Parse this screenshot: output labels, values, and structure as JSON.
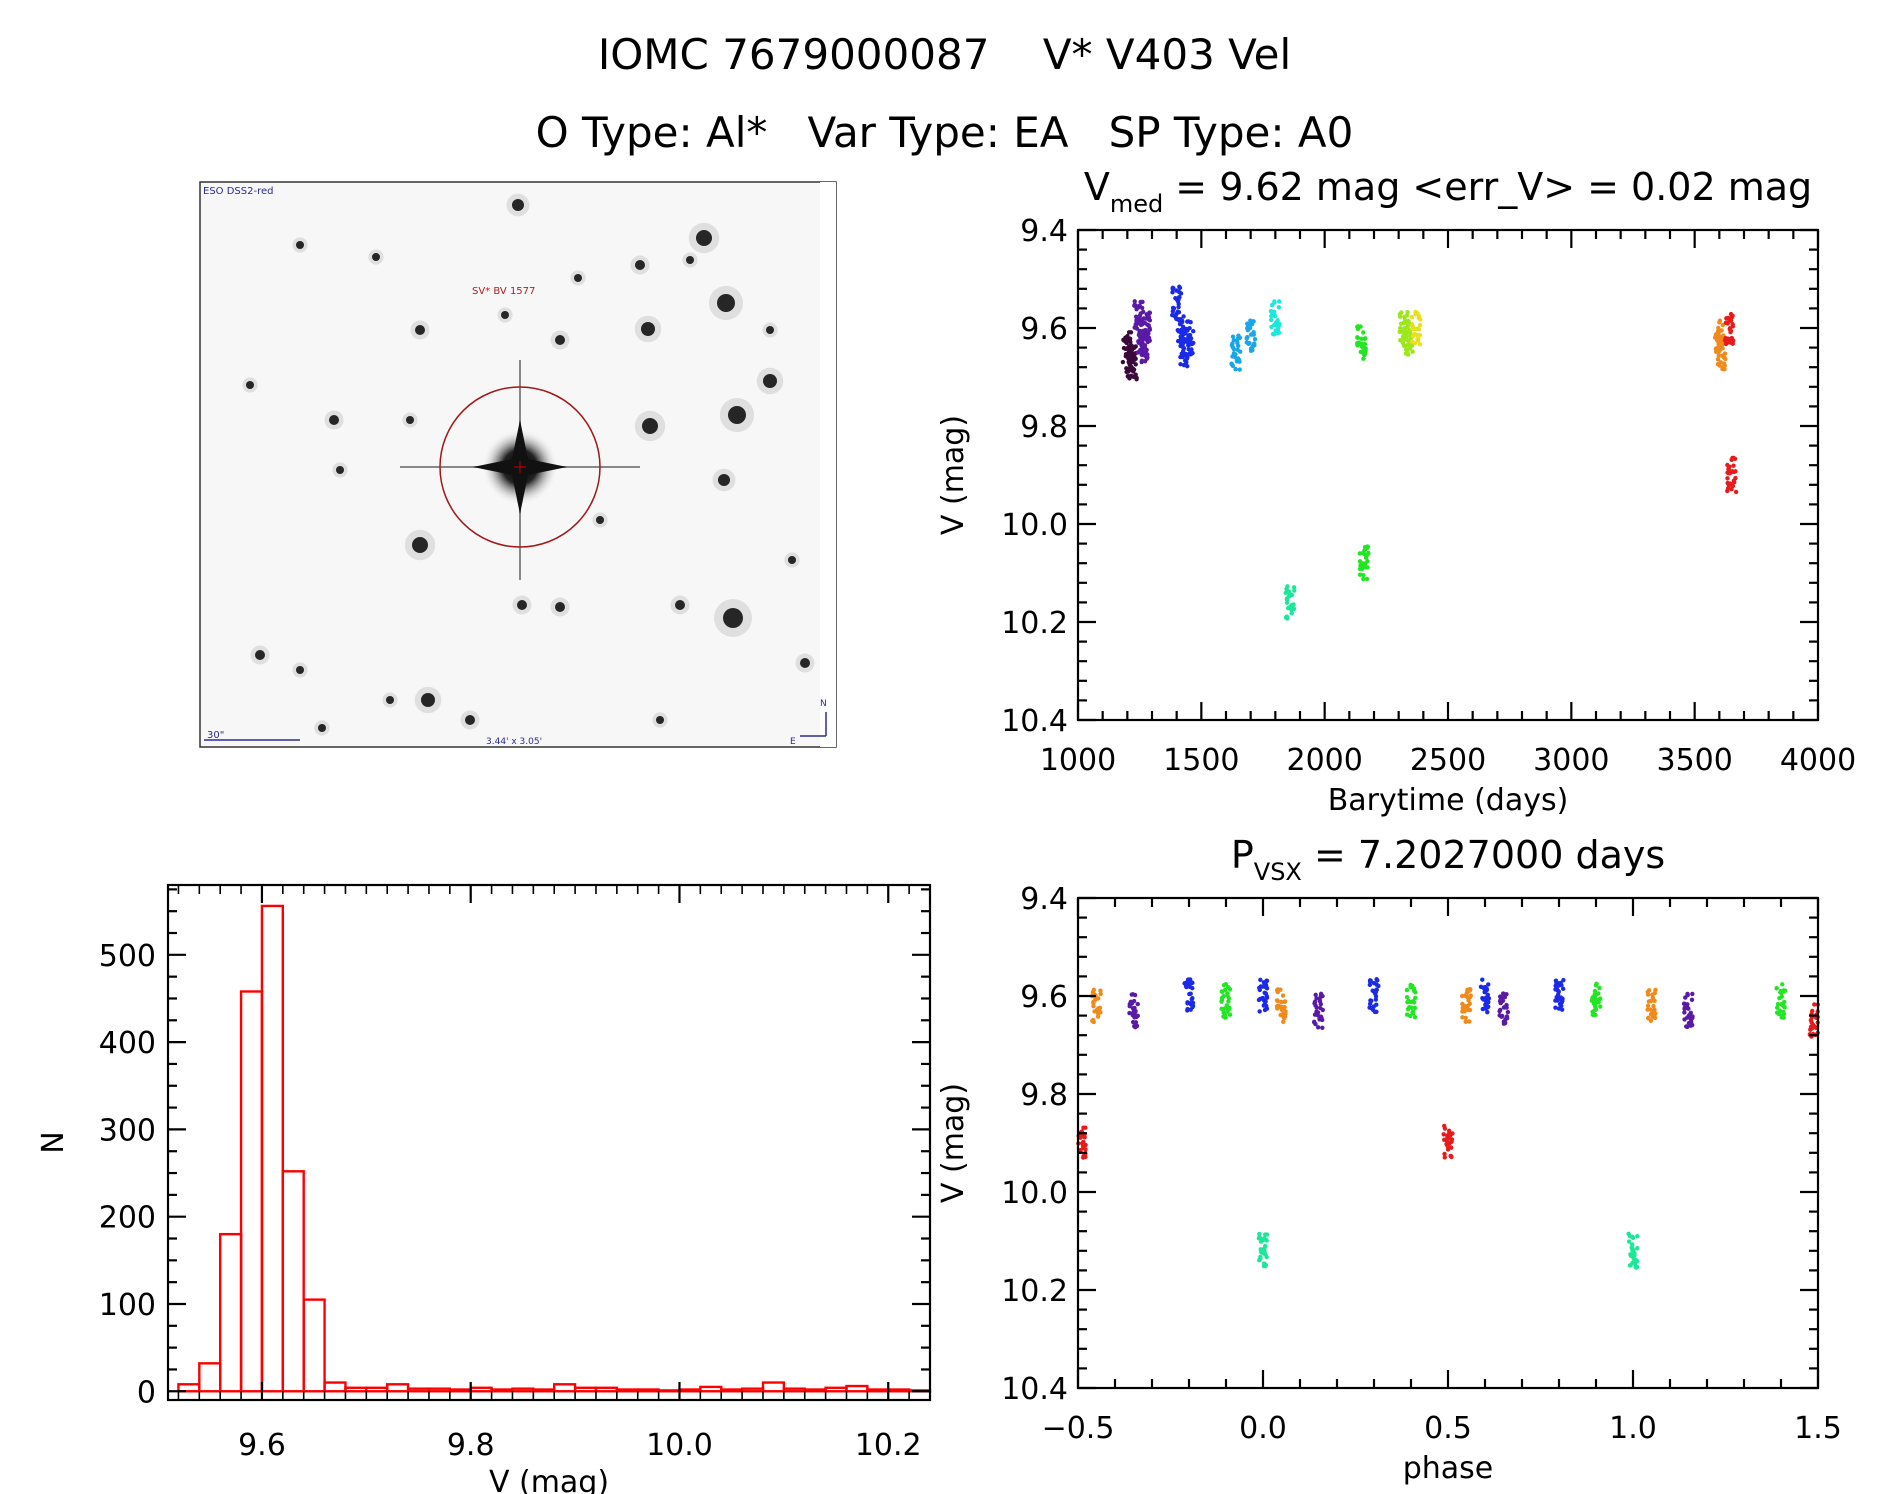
{
  "header": {
    "line1": "IOMC 7679000087    V* V403 Vel",
    "line2": "O Type: Al*   Var Type: EA   SP Type: A0"
  },
  "image_panel": {
    "survey_label": "ESO DSS2-red",
    "target_label": "SV* BV 1577",
    "scale_label": "30\"",
    "fov_label": "3.44' x 3.05'",
    "north_label": "N",
    "east_label": "E"
  },
  "chart_data": [
    {
      "type": "scatter",
      "title_main": "V",
      "title_sub": "med",
      "title_rest": " = 9.62 mag <err_V> = 0.02 mag",
      "xlabel": "Barytime (days)",
      "ylabel": "V (mag)",
      "xlim": [
        1000,
        4000
      ],
      "ylim": [
        10.4,
        9.4
      ],
      "xticks": [
        "1000",
        "1500",
        "2000",
        "2500",
        "3000",
        "3500",
        "4000"
      ],
      "yticks": [
        "9.4",
        "9.6",
        "9.8",
        "10.0",
        "10.2",
        "10.4"
      ],
      "series": [
        {
          "color": "#3a0a3a",
          "x": [
            1200,
            1210,
            1220
          ],
          "y": [
            9.64,
            9.66,
            9.67
          ]
        },
        {
          "color": "#5a1aa8",
          "x": [
            1245,
            1255,
            1265,
            1275
          ],
          "y": [
            9.58,
            9.62,
            9.64,
            9.6
          ]
        },
        {
          "color": "#1a2ae8",
          "x": [
            1400,
            1415,
            1430,
            1450
          ],
          "y": [
            9.55,
            9.6,
            9.65,
            9.62
          ]
        },
        {
          "color": "#1aa6e8",
          "x": [
            1640,
            1700
          ],
          "y": [
            9.65,
            9.62
          ]
        },
        {
          "color": "#1ae8d8",
          "x": [
            1800
          ],
          "y": [
            9.58
          ]
        },
        {
          "color": "#1ae896",
          "x": [
            1860
          ],
          "y": [
            10.16
          ]
        },
        {
          "color": "#22e622",
          "x": [
            2150,
            2160
          ],
          "y": [
            9.63,
            10.08
          ]
        },
        {
          "color": "#9ae81a",
          "x": [
            2320,
            2340
          ],
          "y": [
            9.6,
            9.62
          ]
        },
        {
          "color": "#e8e01a",
          "x": [
            2370
          ],
          "y": [
            9.6
          ]
        },
        {
          "color": "#f08a1a",
          "x": [
            3600,
            3610
          ],
          "y": [
            9.62,
            9.65
          ]
        },
        {
          "color": "#e81a1a",
          "x": [
            3640,
            3650
          ],
          "y": [
            9.6,
            9.9
          ]
        }
      ]
    },
    {
      "type": "bar",
      "title": "",
      "xlabel": "V (mag)",
      "ylabel": "N",
      "xlim": [
        9.51,
        10.24
      ],
      "ylim": [
        -10,
        580
      ],
      "xticks": [
        "9.6",
        "9.8",
        "10.0",
        "10.2"
      ],
      "yticks": [
        "0",
        "100",
        "200",
        "300",
        "400",
        "500"
      ],
      "color": "#ff0000",
      "bin_edges": [
        9.52,
        9.54,
        9.56,
        9.58,
        9.6,
        9.62,
        9.64,
        9.66,
        9.68,
        9.7,
        9.72,
        9.74,
        9.76,
        9.78,
        9.8,
        9.82,
        9.84,
        9.86,
        9.88,
        9.9,
        9.92,
        9.94,
        9.96,
        9.98,
        10.0,
        10.02,
        10.04,
        10.06,
        10.08,
        10.1,
        10.12,
        10.14,
        10.16,
        10.18,
        10.2,
        10.22,
        10.24
      ],
      "values": [
        8,
        32,
        180,
        458,
        556,
        252,
        105,
        10,
        4,
        4,
        8,
        3,
        3,
        2,
        4,
        2,
        3,
        2,
        8,
        4,
        4,
        2,
        2,
        1,
        2,
        5,
        2,
        3,
        10,
        3,
        2,
        4,
        6,
        2,
        2,
        1
      ]
    },
    {
      "type": "scatter",
      "title_main": "P",
      "title_sub": "VSX",
      "title_rest": " = 7.2027000 days",
      "xlabel": "phase",
      "ylabel": "V (mag)",
      "xlim": [
        -0.5,
        1.5
      ],
      "ylim": [
        10.4,
        9.4
      ],
      "xticks": [
        "−0.5",
        "0.0",
        "0.5",
        "1.0",
        "1.5"
      ],
      "yticks": [
        "9.4",
        "9.6",
        "9.8",
        "10.0",
        "10.2",
        "10.4"
      ],
      "series": [
        {
          "color": "#e81a1a",
          "x": [
            -0.49,
            0.5,
            1.49
          ],
          "y": [
            9.9,
            9.9,
            9.65
          ]
        },
        {
          "color": "#1ae896",
          "x": [
            0.0,
            1.0
          ],
          "y": [
            10.12,
            10.12
          ]
        },
        {
          "color": "#1a2ae8",
          "x": [
            -0.2,
            0.0,
            0.3,
            0.6,
            0.8
          ],
          "y": [
            9.6,
            9.6,
            9.6,
            9.6,
            9.6
          ]
        },
        {
          "color": "#5a1aa8",
          "x": [
            -0.35,
            0.15,
            0.65,
            1.15
          ],
          "y": [
            9.63,
            9.63,
            9.63,
            9.63
          ]
        },
        {
          "color": "#f08a1a",
          "x": [
            -0.45,
            0.05,
            0.55,
            1.05
          ],
          "y": [
            9.62,
            9.62,
            9.62,
            9.62
          ]
        },
        {
          "color": "#22e622",
          "x": [
            -0.1,
            0.4,
            0.9,
            1.4
          ],
          "y": [
            9.61,
            9.61,
            9.61,
            9.61
          ]
        }
      ]
    }
  ]
}
